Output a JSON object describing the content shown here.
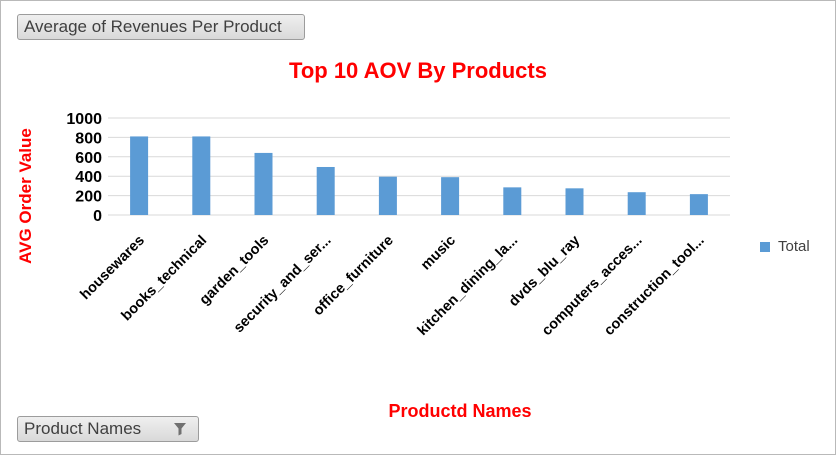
{
  "value_field": {
    "label": "Average of Revenues Per Product"
  },
  "axis_field": {
    "label": "Product Names",
    "icon": "filter-icon"
  },
  "colors": {
    "bar": "#5b9bd5",
    "title": "#ff0000",
    "grid": "#d9d9d9"
  },
  "chart_data": {
    "type": "bar",
    "title": "Top 10 AOV By Products",
    "xlabel": "Productd Names",
    "ylabel": "AVG Order Value",
    "categories": [
      "housewares",
      "books_technical",
      "garden_tools",
      "security_and_ser...",
      "office_furniture",
      "music",
      "kitchen_dining_la...",
      "dvds_blu_ray",
      "computers_acces...",
      "construction_tool..."
    ],
    "series": [
      {
        "name": "Total",
        "values": [
          810,
          810,
          640,
          495,
          395,
          390,
          285,
          275,
          235,
          215
        ]
      }
    ],
    "ylim": [
      0,
      1000
    ],
    "yticks": [
      0,
      200,
      400,
      600,
      800,
      1000
    ],
    "grid": true,
    "legend_position": "right"
  }
}
